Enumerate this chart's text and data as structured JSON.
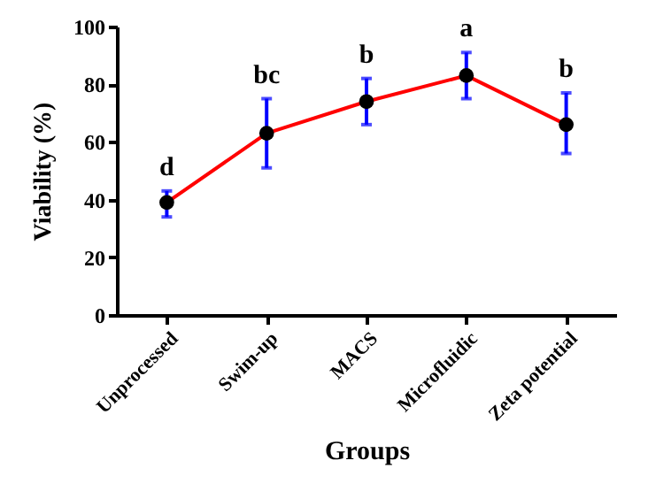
{
  "chart_data": {
    "type": "line",
    "xlabel": "Groups",
    "ylabel": "Viability (%)",
    "categories": [
      "Unprocessed",
      "Swim-up",
      "MACS",
      "Microfluidic",
      "Zeta potential"
    ],
    "series": [
      {
        "color": "#ff0000",
        "values": [
          39,
          63,
          74,
          83,
          66
        ],
        "errors": [
          [
            34,
            43
          ],
          [
            51,
            75
          ],
          [
            66,
            82
          ],
          [
            75,
            91
          ],
          [
            56,
            77
          ]
        ]
      }
    ],
    "ylim": [
      0,
      100
    ],
    "yticks": [
      0,
      20,
      40,
      60,
      80,
      100
    ],
    "grid": false,
    "marker": "circle",
    "line_style": "solid",
    "annotations": [
      "d",
      "bc",
      "b",
      "a",
      "b"
    ]
  }
}
